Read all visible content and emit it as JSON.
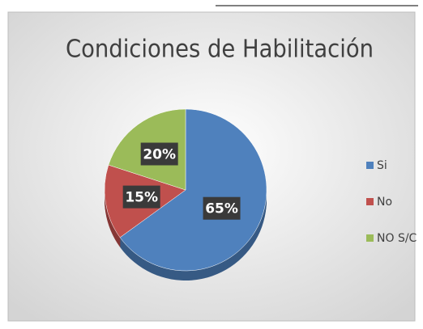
{
  "chart_data": {
    "type": "pie",
    "title": "Condiciones de Habilitación",
    "categories": [
      "Si",
      "No",
      "NO S/C"
    ],
    "values": [
      65,
      15,
      20
    ],
    "value_labels": [
      "65%",
      "15%",
      "20%"
    ],
    "colors": [
      "#4f81bd",
      "#c0504d",
      "#9bbb59"
    ],
    "legend": "right"
  }
}
